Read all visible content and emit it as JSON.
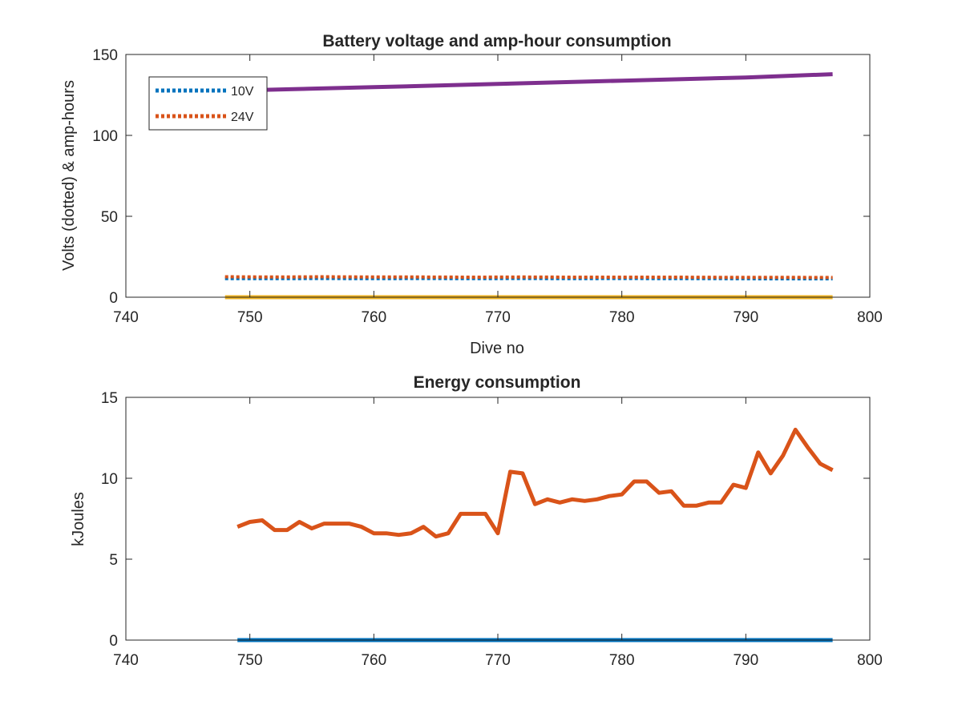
{
  "colors": {
    "blue": "#0072BD",
    "orange": "#D95319",
    "yellow": "#EDB120",
    "purple": "#7E2F8E",
    "axis": "#262626"
  },
  "chart_data": [
    {
      "type": "line",
      "title": "Battery voltage and amp-hour consumption",
      "xlabel": "Dive no",
      "ylabel": "Volts (dotted) & amp-hours",
      "xlim": [
        740,
        800
      ],
      "ylim": [
        0,
        150
      ],
      "xticks": [
        "740",
        "750",
        "760",
        "770",
        "780",
        "790",
        "800"
      ],
      "yticks": [
        "0",
        "50",
        "100",
        "150"
      ],
      "grid": false,
      "legend_position": "top-left",
      "series": [
        {
          "name": "10V",
          "style": "dotted",
          "color": "#0072BD",
          "x": [
            748,
            752,
            756,
            760,
            764,
            768,
            772,
            776,
            780,
            784,
            788,
            792,
            797
          ],
          "y": [
            11.5,
            11.5,
            11.6,
            11.5,
            11.6,
            11.5,
            11.6,
            11.5,
            11.6,
            11.5,
            11.5,
            11.4,
            11.4
          ]
        },
        {
          "name": "24V",
          "style": "dotted",
          "color": "#D95319",
          "x": [
            748,
            752,
            756,
            760,
            764,
            768,
            772,
            776,
            780,
            784,
            788,
            792,
            797
          ],
          "y": [
            12.6,
            12.5,
            12.6,
            12.5,
            12.5,
            12.4,
            12.5,
            12.4,
            12.4,
            12.4,
            12.3,
            12.3,
            12.2
          ]
        },
        {
          "style": "solid",
          "color": "#EDB120",
          "x": [
            748,
            797
          ],
          "y": [
            0,
            0
          ]
        },
        {
          "style": "solid",
          "color": "#7E2F8E",
          "x": [
            748,
            760,
            770,
            780,
            790,
            797
          ],
          "y": [
            127.5,
            129.8,
            131.8,
            133.8,
            135.8,
            137.8
          ]
        }
      ]
    },
    {
      "type": "line",
      "title": "Energy consumption",
      "xlabel": "",
      "ylabel": "kJoules",
      "xlim": [
        740,
        800
      ],
      "ylim": [
        0,
        15
      ],
      "xticks": [
        "740",
        "750",
        "760",
        "770",
        "780",
        "790",
        "800"
      ],
      "yticks": [
        "0",
        "5",
        "10",
        "15"
      ],
      "grid": false,
      "series": [
        {
          "style": "solid",
          "color": "#0072BD",
          "x": [
            749,
            797
          ],
          "y": [
            0,
            0
          ]
        },
        {
          "style": "solid",
          "color": "#D95319",
          "x": [
            749,
            750,
            751,
            752,
            753,
            754,
            755,
            756,
            757,
            758,
            759,
            760,
            761,
            762,
            763,
            764,
            765,
            766,
            767,
            768,
            769,
            770,
            771,
            772,
            773,
            774,
            775,
            776,
            777,
            778,
            779,
            780,
            781,
            782,
            783,
            784,
            785,
            786,
            787,
            788,
            789,
            790,
            791,
            792,
            793,
            794,
            795,
            796,
            797
          ],
          "y": [
            7.0,
            7.3,
            7.4,
            6.8,
            6.8,
            7.3,
            6.9,
            7.2,
            7.2,
            7.2,
            7.0,
            6.6,
            6.6,
            6.5,
            6.6,
            7.0,
            6.4,
            6.6,
            7.8,
            7.8,
            7.8,
            6.6,
            10.4,
            10.3,
            8.4,
            8.7,
            8.5,
            8.7,
            8.6,
            8.7,
            8.9,
            9.0,
            9.8,
            9.8,
            9.1,
            9.2,
            8.3,
            8.3,
            8.5,
            8.5,
            9.6,
            9.4,
            11.6,
            10.3,
            11.4,
            13.0,
            11.9,
            10.9,
            10.5
          ]
        }
      ]
    }
  ]
}
